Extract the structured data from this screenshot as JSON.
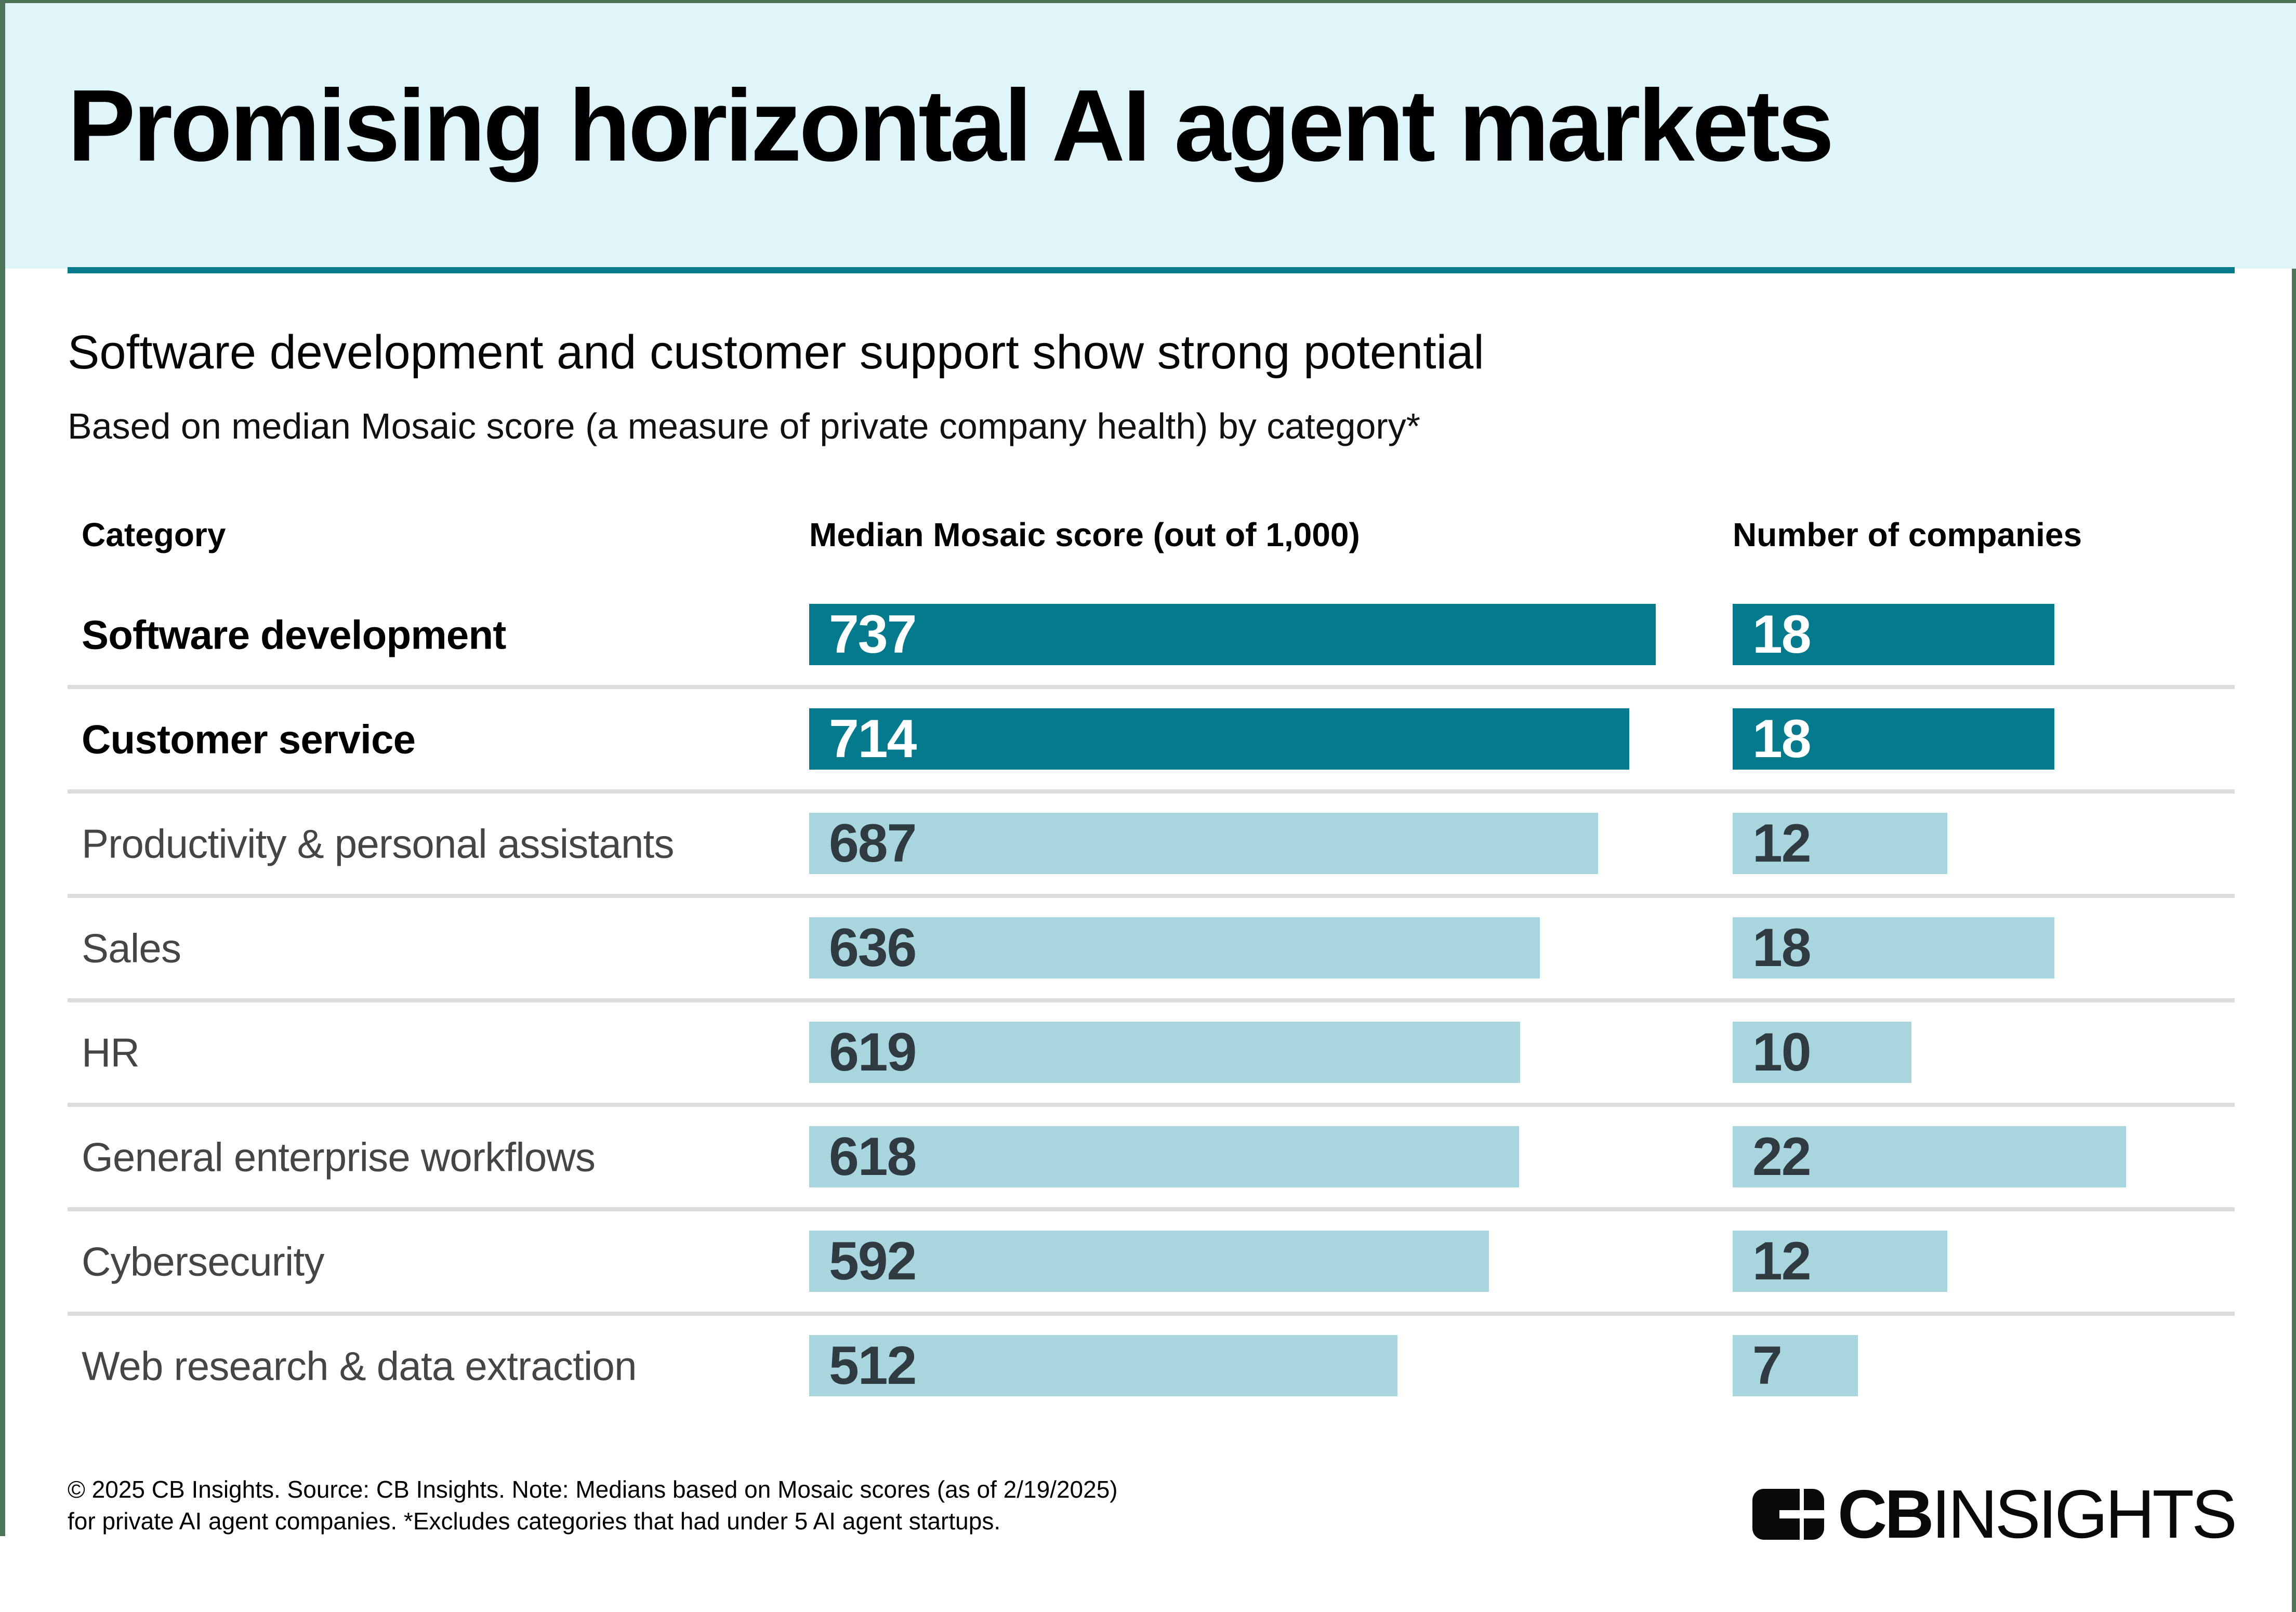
{
  "header": {
    "title": "Promising horizontal AI agent markets"
  },
  "subtitle": "Software development and customer support show strong potential",
  "methodology": "Based on median Mosaic score (a measure of private company health) by category*",
  "table": {
    "columns": [
      "Category",
      "Median Mosaic score (out of 1,000)",
      "Number of companies"
    ],
    "rows": [
      {
        "category": "Software development",
        "score": 737,
        "companies": 18,
        "highlight": true
      },
      {
        "category": "Customer service",
        "score": 714,
        "companies": 18,
        "highlight": true
      },
      {
        "category": "Productivity & personal assistants",
        "score": 687,
        "companies": 12,
        "highlight": false
      },
      {
        "category": "Sales",
        "score": 636,
        "companies": 18,
        "highlight": false
      },
      {
        "category": "HR",
        "score": 619,
        "companies": 10,
        "highlight": false
      },
      {
        "category": "General enterprise workflows",
        "score": 618,
        "companies": 22,
        "highlight": false
      },
      {
        "category": "Cybersecurity",
        "score": 592,
        "companies": 12,
        "highlight": false
      },
      {
        "category": "Web research & data extraction",
        "score": 512,
        "companies": 7,
        "highlight": false
      }
    ]
  },
  "footer": {
    "note_lines": [
      "© 2025 CB Insights. Source: CB Insights. Note: Medians based on Mosaic scores (as of 2/19/2025)",
      "for private AI agent companies. *Excludes categories that had under 5 AI agent startups."
    ],
    "logo_cb": "CB",
    "logo_insights": "INSIGHTS"
  },
  "colors": {
    "highlight_teal": "#067A8D",
    "light_blue_bar": "#A9D5DE",
    "header_background": "#DFF5FA",
    "frame_green": "#4D7456",
    "divider_gray": "#DCDCDC",
    "value_text_dark": "#2F3B40"
  },
  "chart_data": {
    "type": "bar",
    "orientation": "horizontal",
    "title": "Promising horizontal AI agent markets",
    "subtitle": "Software development and customer support show strong potential",
    "note": "Based on median Mosaic score (a measure of private company health) by category*",
    "categories": [
      "Software development",
      "Customer service",
      "Productivity & personal assistants",
      "Sales",
      "HR",
      "General enterprise workflows",
      "Cybersecurity",
      "Web research & data extraction"
    ],
    "series": [
      {
        "name": "Median Mosaic score (out of 1,000)",
        "values": [
          737,
          714,
          687,
          636,
          619,
          618,
          592,
          512
        ],
        "axis_range": [
          0,
          1000
        ]
      },
      {
        "name": "Number of companies",
        "values": [
          18,
          18,
          12,
          18,
          10,
          22,
          12,
          7
        ]
      }
    ],
    "highlighted_categories": [
      "Software development",
      "Customer service"
    ],
    "legend_position": "none",
    "grid": false,
    "data_labels": "inside-left"
  }
}
